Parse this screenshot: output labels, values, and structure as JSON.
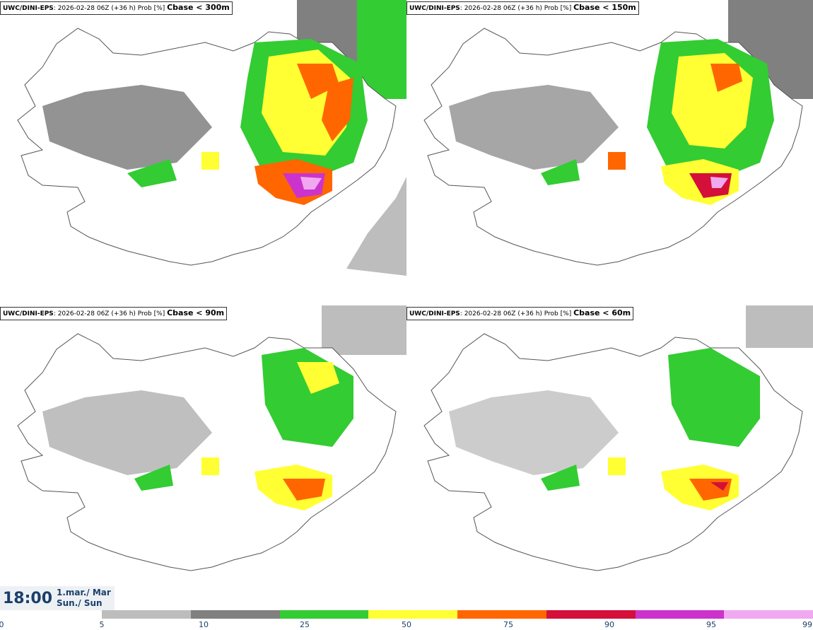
{
  "panels": [
    {
      "model": "UWC/DINI-EPS",
      "info": ": 2026-02-28 06Z (+36 h) Prob [%]",
      "threshold": "Cbase < 300m"
    },
    {
      "model": "UWC/DINI-EPS",
      "info": ": 2026-02-28 06Z (+36 h) Prob [%]",
      "threshold": "Cbase < 150m"
    },
    {
      "model": "UWC/DINI-EPS",
      "info": ": 2026-02-28 06Z (+36 h) Prob [%]",
      "threshold": "Cbase < 90m"
    },
    {
      "model": "UWC/DINI-EPS",
      "info": ": 2026-02-28 06Z (+36 h) Prob [%]",
      "threshold": "Cbase < 60m"
    }
  ],
  "valid_time": {
    "time": "18:00",
    "date_line1": "1.mar./ Mar",
    "date_line2": "Sun./ Sun"
  },
  "legend": {
    "colors": [
      "#bdbdbd",
      "#808080",
      "#33cc33",
      "#ffff33",
      "#ff6600",
      "#d40f3a",
      "#cc33cc",
      "#f0a8f0"
    ],
    "ticks": [
      "0",
      "5",
      "10",
      "25",
      "50",
      "75",
      "90",
      "95",
      "99"
    ]
  }
}
